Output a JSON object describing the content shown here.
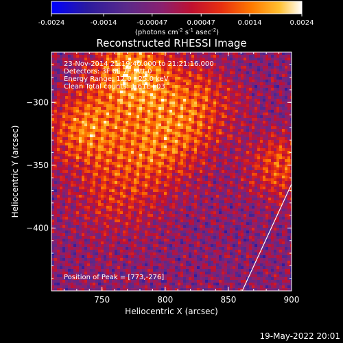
{
  "colorbar": {
    "ticks": [
      "-0.0024",
      "-0.0014",
      "-0.00047",
      "0.00047",
      "0.0014",
      "0.0024"
    ],
    "unit_parts": [
      "(photons cm",
      "-2",
      " s",
      "-1",
      " asec",
      "-2",
      ")"
    ],
    "colors": [
      "#0000ff",
      "#2a1aa0",
      "#5a2a8a",
      "#8a2070",
      "#c01030",
      "#e83010",
      "#ff7a00",
      "#ffc030",
      "#ffffff"
    ]
  },
  "chart_data": {
    "type": "heatmap",
    "title": "Reconstructed RHESSI Image",
    "xlabel": "Heliocentric X (arcsec)",
    "ylabel": "Heliocentric Y (arcsec)",
    "xlim": [
      710,
      900
    ],
    "ylim": [
      -450,
      -260
    ],
    "x_ticks": [
      750,
      800,
      850,
      900
    ],
    "y_ticks": [
      -300,
      -350,
      -400
    ],
    "x_tick_labels": [
      "750",
      "800",
      "850",
      "900"
    ],
    "y_tick_labels": [
      "−300",
      "−350",
      "−400"
    ],
    "value_range": [
      -0.0024,
      0.0024
    ],
    "peak": [
      773,
      -276
    ],
    "limb_line": [
      [
        861,
        -450
      ],
      [
        900,
        -365
      ]
    ],
    "info_lines": [
      "23-Nov-2014 21:19:40.000 to 21:21:16.000",
      "Detectors: 3F 6F 7F, Att 0",
      "Energy Range: 12.0 - 25.0 keV",
      "Clean     Total counts: 1.61E+03"
    ],
    "peak_text": "Position of Peak = [773,-276]"
  },
  "footer": {
    "timestamp": "19-May-2022 20:01"
  }
}
